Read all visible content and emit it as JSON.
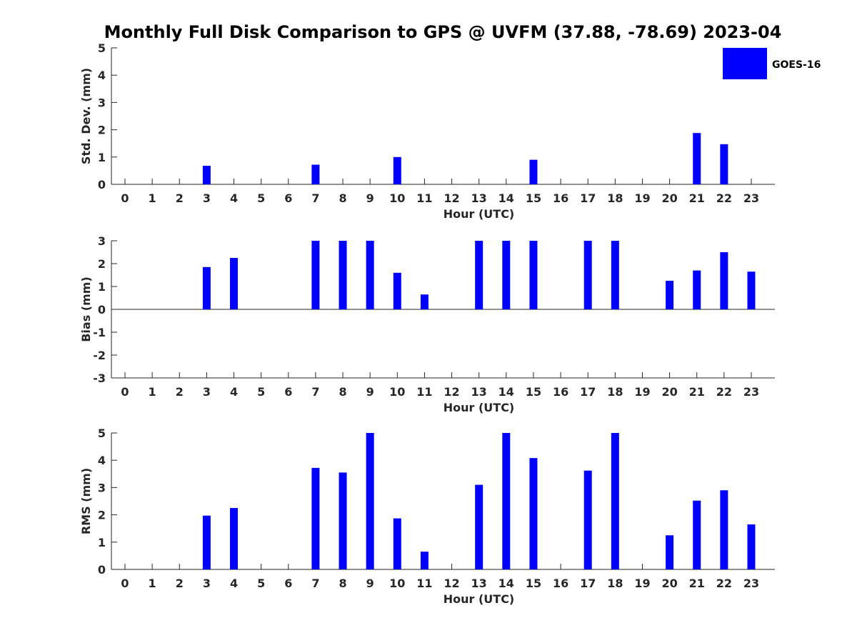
{
  "title": "Monthly Full Disk Comparison to GPS @ UVFM (37.88, -78.69) 2023-04",
  "legend": {
    "label": "GOES-16",
    "color": "#0000ff",
    "placement": "top-right"
  },
  "chart_data": [
    {
      "type": "bar",
      "ylabel": "Std. Dev. (mm)",
      "xlabel": "Hour (UTC)",
      "ylim": [
        0,
        5
      ],
      "yticks": [
        0,
        1,
        2,
        3,
        4,
        5
      ],
      "categories": [
        "0",
        "1",
        "2",
        "3",
        "4",
        "5",
        "6",
        "7",
        "8",
        "9",
        "10",
        "11",
        "12",
        "13",
        "14",
        "15",
        "16",
        "17",
        "18",
        "19",
        "20",
        "21",
        "22",
        "23"
      ],
      "series": [
        {
          "name": "GOES-16",
          "color": "#0000ff",
          "values": [
            null,
            null,
            null,
            0.68,
            null,
            null,
            null,
            0.72,
            null,
            null,
            1.0,
            null,
            null,
            null,
            null,
            0.9,
            null,
            null,
            null,
            null,
            null,
            1.88,
            1.47,
            null
          ]
        }
      ]
    },
    {
      "type": "bar",
      "ylabel": "Bias (mm)",
      "xlabel": "Hour (UTC)",
      "ylim": [
        -3,
        3
      ],
      "yticks": [
        -3,
        -2,
        -1,
        0,
        1,
        2,
        3
      ],
      "baseline": 0,
      "categories": [
        "0",
        "1",
        "2",
        "3",
        "4",
        "5",
        "6",
        "7",
        "8",
        "9",
        "10",
        "11",
        "12",
        "13",
        "14",
        "15",
        "16",
        "17",
        "18",
        "19",
        "20",
        "21",
        "22",
        "23"
      ],
      "series": [
        {
          "name": "GOES-16",
          "color": "#0000ff",
          "values": [
            null,
            null,
            null,
            1.85,
            2.25,
            null,
            null,
            3.0,
            3.0,
            3.0,
            1.6,
            0.65,
            null,
            3.0,
            3.0,
            3.0,
            null,
            3.0,
            3.0,
            null,
            1.25,
            1.7,
            2.5,
            1.65
          ]
        }
      ]
    },
    {
      "type": "bar",
      "ylabel": "RMS (mm)",
      "xlabel": "Hour (UTC)",
      "ylim": [
        0,
        5
      ],
      "yticks": [
        0,
        1,
        2,
        3,
        4,
        5
      ],
      "categories": [
        "0",
        "1",
        "2",
        "3",
        "4",
        "5",
        "6",
        "7",
        "8",
        "9",
        "10",
        "11",
        "12",
        "13",
        "14",
        "15",
        "16",
        "17",
        "18",
        "19",
        "20",
        "21",
        "22",
        "23"
      ],
      "series": [
        {
          "name": "GOES-16",
          "color": "#0000ff",
          "values": [
            null,
            null,
            null,
            1.97,
            2.25,
            null,
            null,
            3.72,
            3.55,
            5.0,
            1.87,
            0.65,
            null,
            3.1,
            5.0,
            4.08,
            null,
            3.62,
            5.0,
            null,
            1.25,
            2.52,
            2.9,
            1.65
          ]
        }
      ]
    }
  ]
}
